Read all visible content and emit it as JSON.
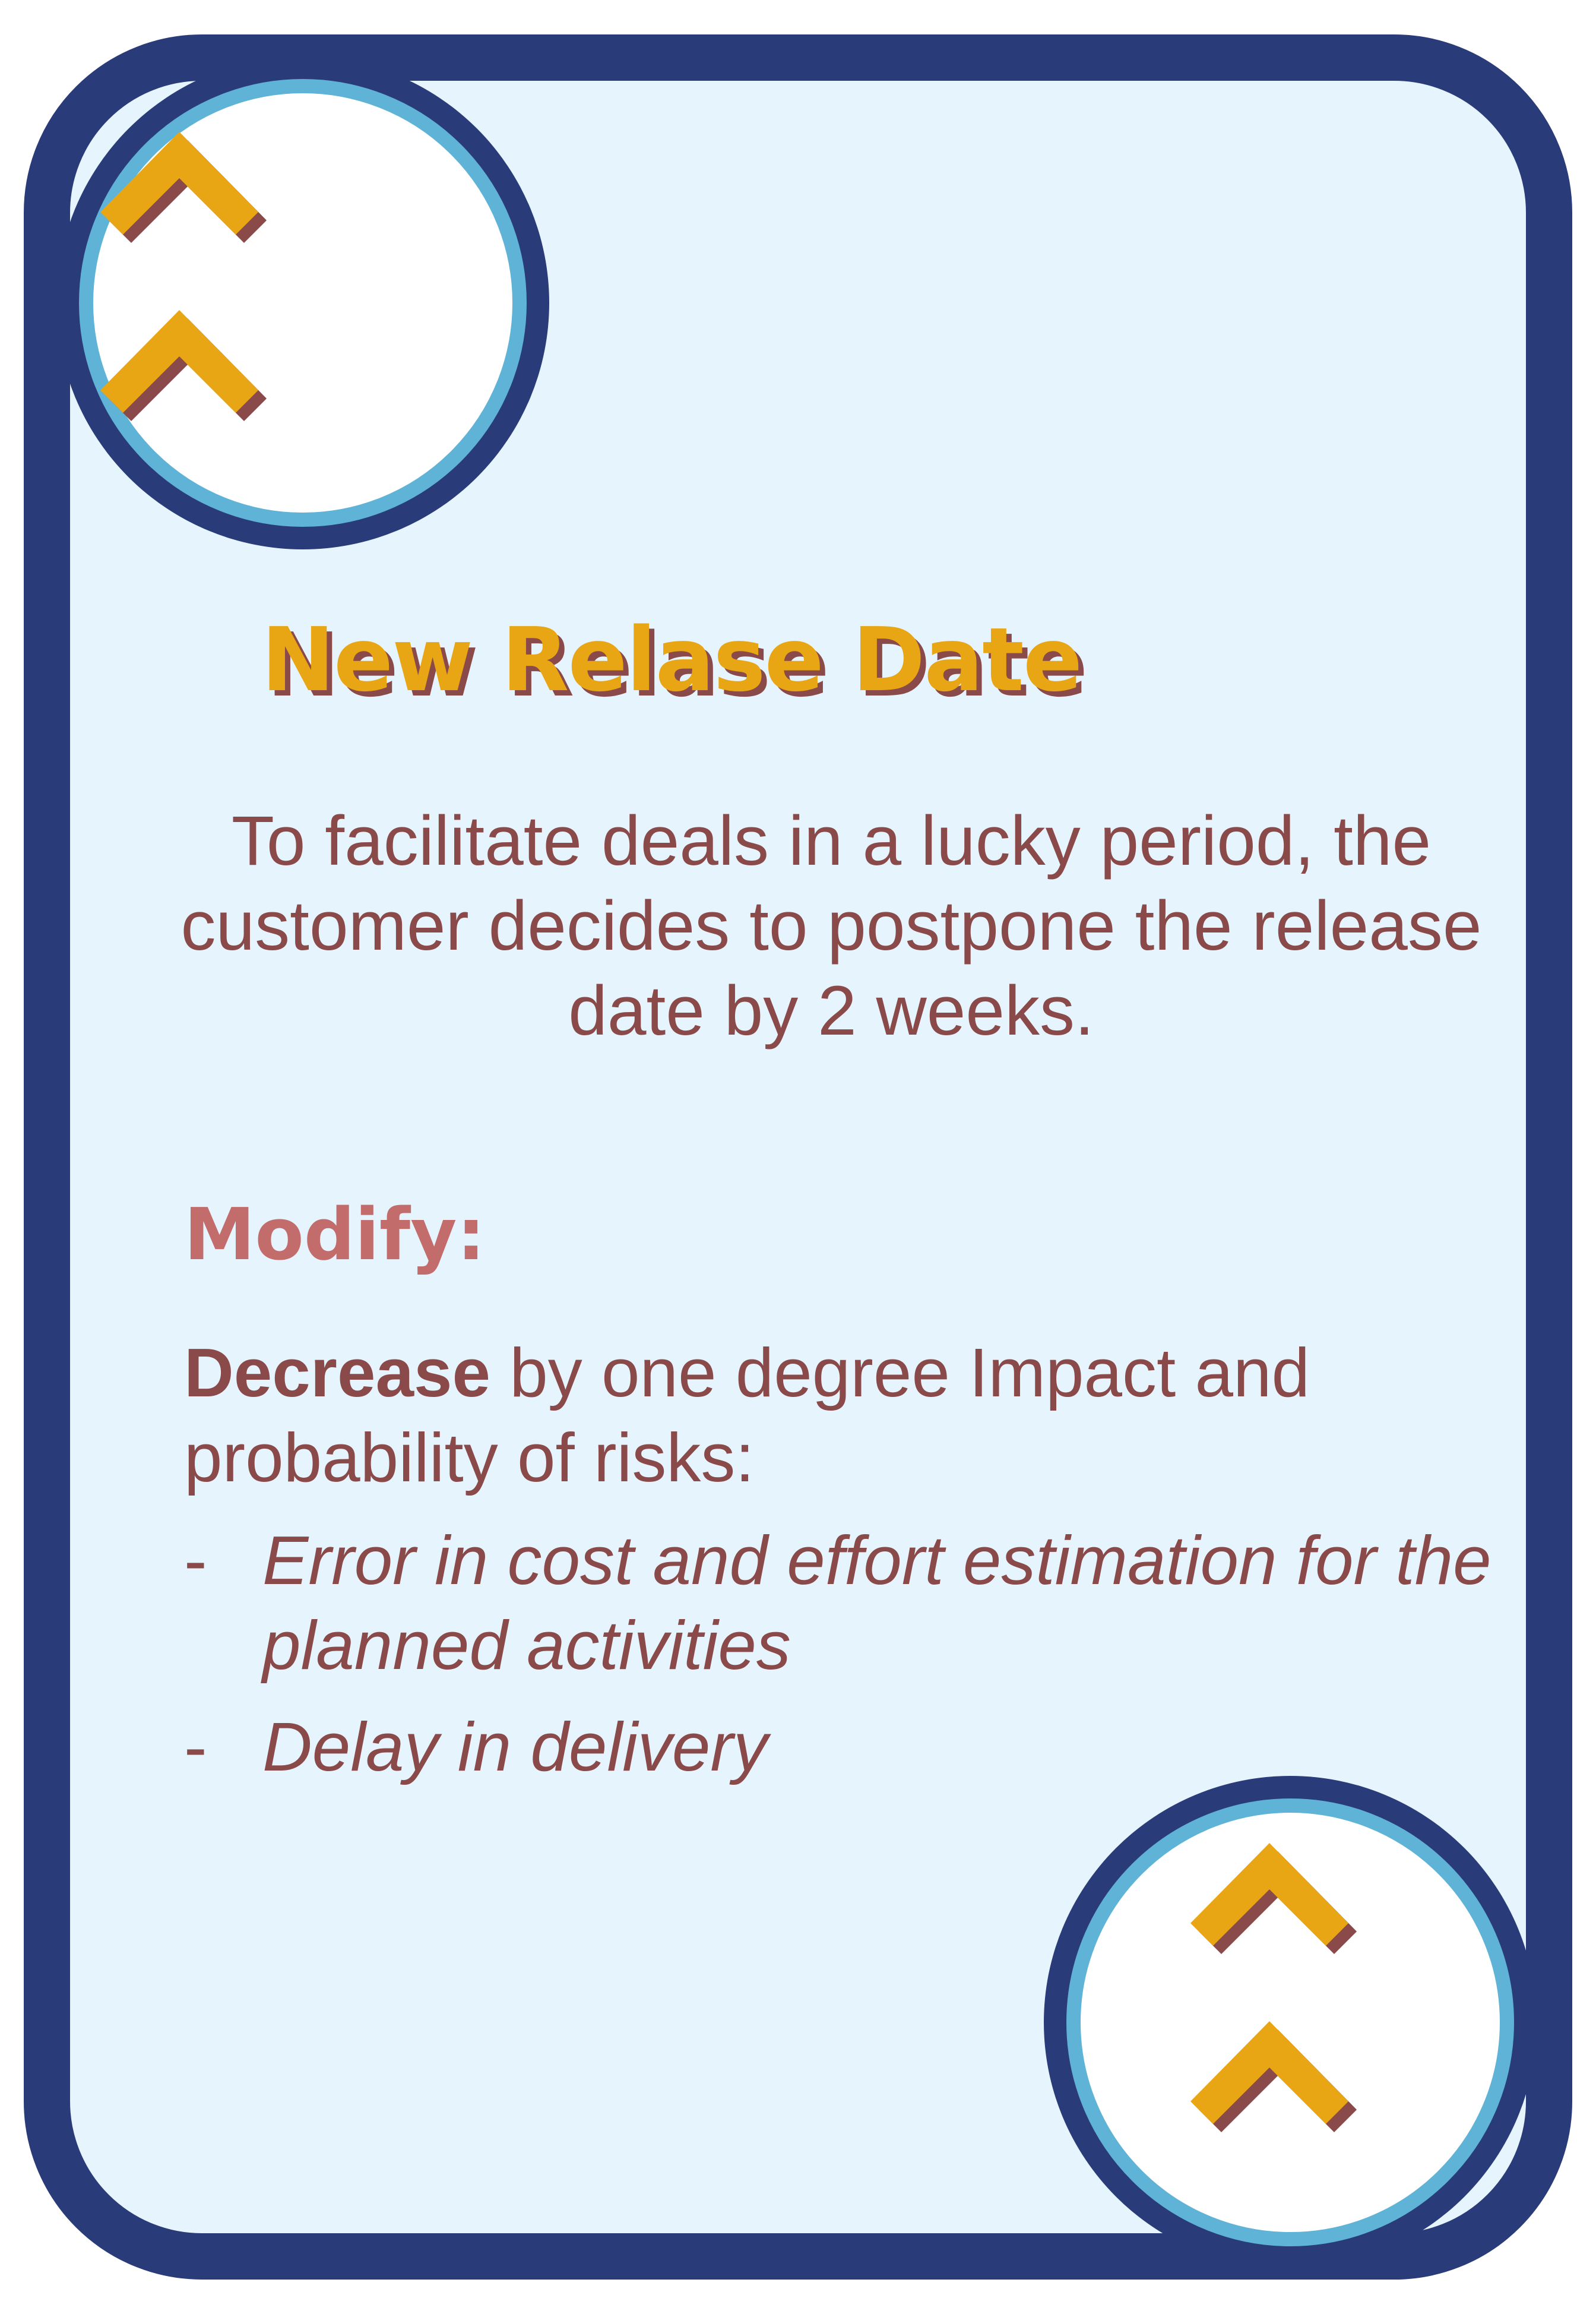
{
  "card": {
    "title": "New Relase Date",
    "description": "To facilitate deals in a lucky period, the customer decides to postpone the release date by 2 weeks.",
    "modify_heading": "Modify:",
    "effect": {
      "action": "Decrease",
      "text": " by one degree Impact and probability of risks:",
      "risks": [
        "Error in cost and effort estimation for the planned activities",
        "Delay in delivery"
      ],
      "bullet": "-"
    },
    "icons": {
      "top_left": "double-chevron-up-icon",
      "bottom_right": "double-chevron-up-icon"
    }
  },
  "colors": {
    "border": "#293b79",
    "ring": "#5fb3d6",
    "background": "#e6f4fd",
    "accent": "#e9a614",
    "text": "#8a4a4a",
    "heading": "#c26c6c"
  }
}
